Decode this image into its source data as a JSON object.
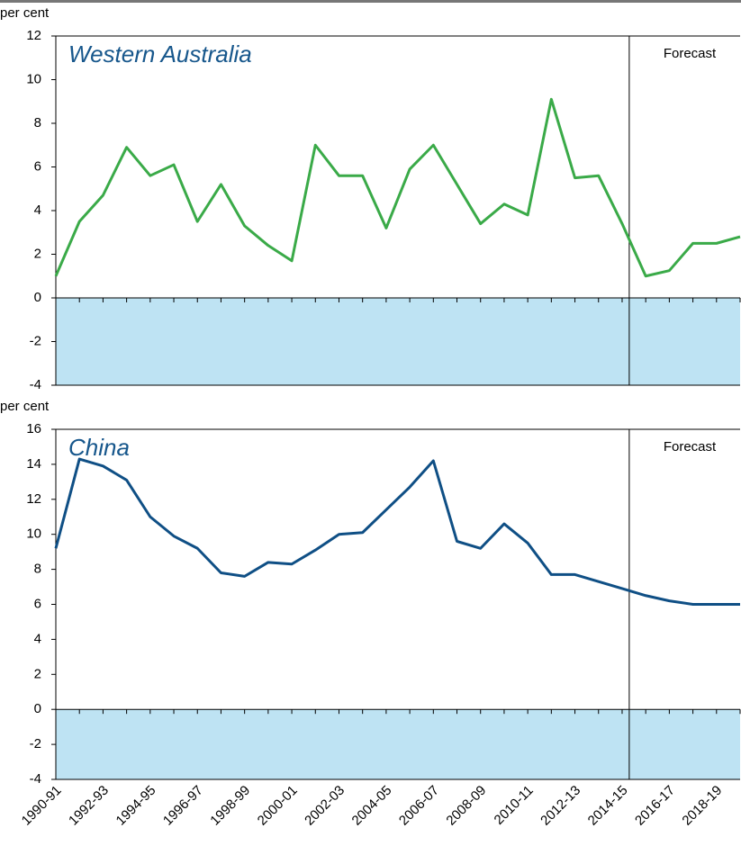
{
  "chart_data": [
    {
      "type": "line",
      "title": "Western Australia",
      "y_label": "per cent",
      "annotation": "Forecast",
      "values": [
        1.0,
        3.5,
        4.7,
        6.9,
        5.6,
        6.1,
        3.5,
        5.2,
        3.3,
        2.4,
        1.7,
        7.0,
        5.6,
        5.6,
        3.2,
        5.9,
        7.0,
        5.2,
        3.4,
        4.3,
        3.8,
        9.1,
        5.5,
        5.6,
        3.4,
        1.0,
        1.25,
        2.5,
        2.5,
        2.8
      ],
      "color": "#3aaa48",
      "negative_fill": "#bee3f3",
      "ylim": [
        -4,
        12
      ],
      "yticks": [
        -4,
        -2,
        0,
        2,
        4,
        6,
        8,
        10,
        12
      ],
      "grid": false
    },
    {
      "type": "line",
      "title": "China",
      "y_label": "per cent",
      "annotation": "Forecast",
      "categories": [
        "1990-91",
        null,
        "1992-93",
        null,
        "1994-95",
        null,
        "1996-97",
        null,
        "1998-99",
        null,
        "2000-01",
        null,
        "2002-03",
        null,
        "2004-05",
        null,
        "2006-07",
        null,
        "2008-09",
        null,
        "2010-11",
        null,
        "2012-13",
        null,
        "2014-15",
        null,
        "2016-17",
        null,
        "2018-19",
        null
      ],
      "values": [
        9.2,
        14.3,
        13.9,
        13.1,
        11.0,
        9.9,
        9.2,
        7.8,
        7.6,
        8.4,
        8.3,
        9.1,
        10.0,
        10.1,
        11.4,
        12.7,
        14.2,
        9.6,
        9.2,
        10.6,
        9.5,
        7.7,
        7.7,
        7.3,
        6.9,
        6.5,
        6.2,
        6.0,
        6.0,
        6.0
      ],
      "color": "#0f4f85",
      "negative_fill": "#bee3f3",
      "ylim": [
        -4,
        16
      ],
      "yticks": [
        -4,
        -2,
        0,
        2,
        4,
        6,
        8,
        10,
        12,
        14,
        16
      ],
      "grid": false
    }
  ]
}
